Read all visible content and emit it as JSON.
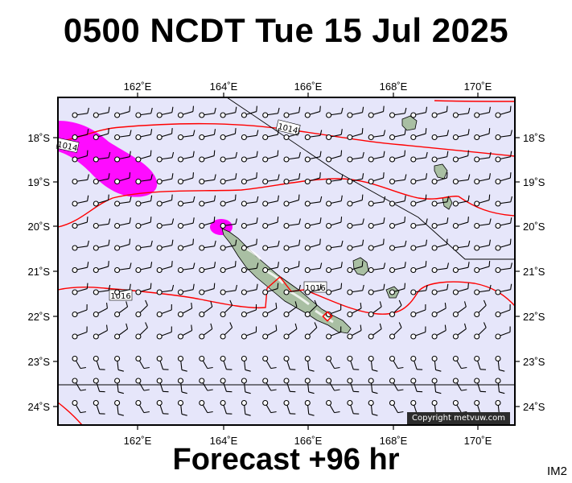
{
  "header": {
    "title": "0500 NCDT Tue 15 Jul 2025"
  },
  "footer": {
    "forecast": "Forecast +96 hr",
    "tag": "IM2"
  },
  "map": {
    "copyright": "Copyright metvuw.com",
    "lon_labels": [
      "162˚E",
      "164˚E",
      "166˚E",
      "168˚E",
      "170˚E"
    ],
    "lat_labels": [
      "18˚S",
      "19˚S",
      "20˚S",
      "21˚S",
      "22˚S",
      "23˚S",
      "24˚S"
    ],
    "isobar_labels": [
      "1014",
      "1014",
      "1016",
      "1016"
    ],
    "colors": {
      "sea": "#e6e6fa",
      "isobar": "#ff0000",
      "rain": "#ff00ff",
      "land": "#a9bfa3"
    }
  }
}
